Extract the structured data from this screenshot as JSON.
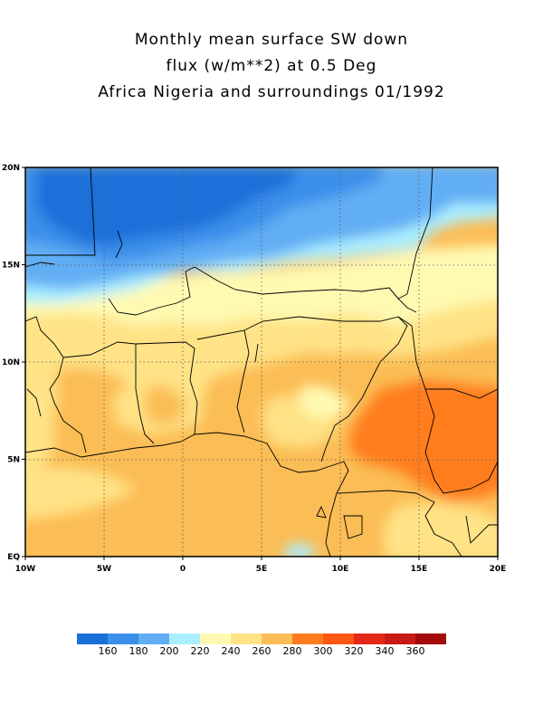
{
  "title": {
    "line1": "Monthly mean surface SW down",
    "line2": "flux (w/m**2) at 0.5 Deg",
    "line3": "Africa Nigeria and surroundings 01/1992"
  },
  "axes": {
    "x_ticks": [
      "10W",
      "5W",
      "0",
      "5E",
      "10E",
      "15E",
      "20E"
    ],
    "y_ticks": [
      "20N",
      "15N",
      "10N",
      "5N",
      "EQ"
    ],
    "lon_range": [
      -10,
      20
    ],
    "lat_range": [
      0,
      20
    ],
    "grid": "dotted"
  },
  "colorbar": {
    "colors": [
      "#1a6fd9",
      "#3a8fea",
      "#62aef4",
      "#aaeeff",
      "#fffab2",
      "#ffe386",
      "#fbbd55",
      "#ff7d1f",
      "#ff5714",
      "#e52817",
      "#c81b16",
      "#a30b0b"
    ],
    "labels": [
      "160",
      "180",
      "200",
      "220",
      "240",
      "260",
      "280",
      "300",
      "320",
      "340",
      "360"
    ]
  }
}
